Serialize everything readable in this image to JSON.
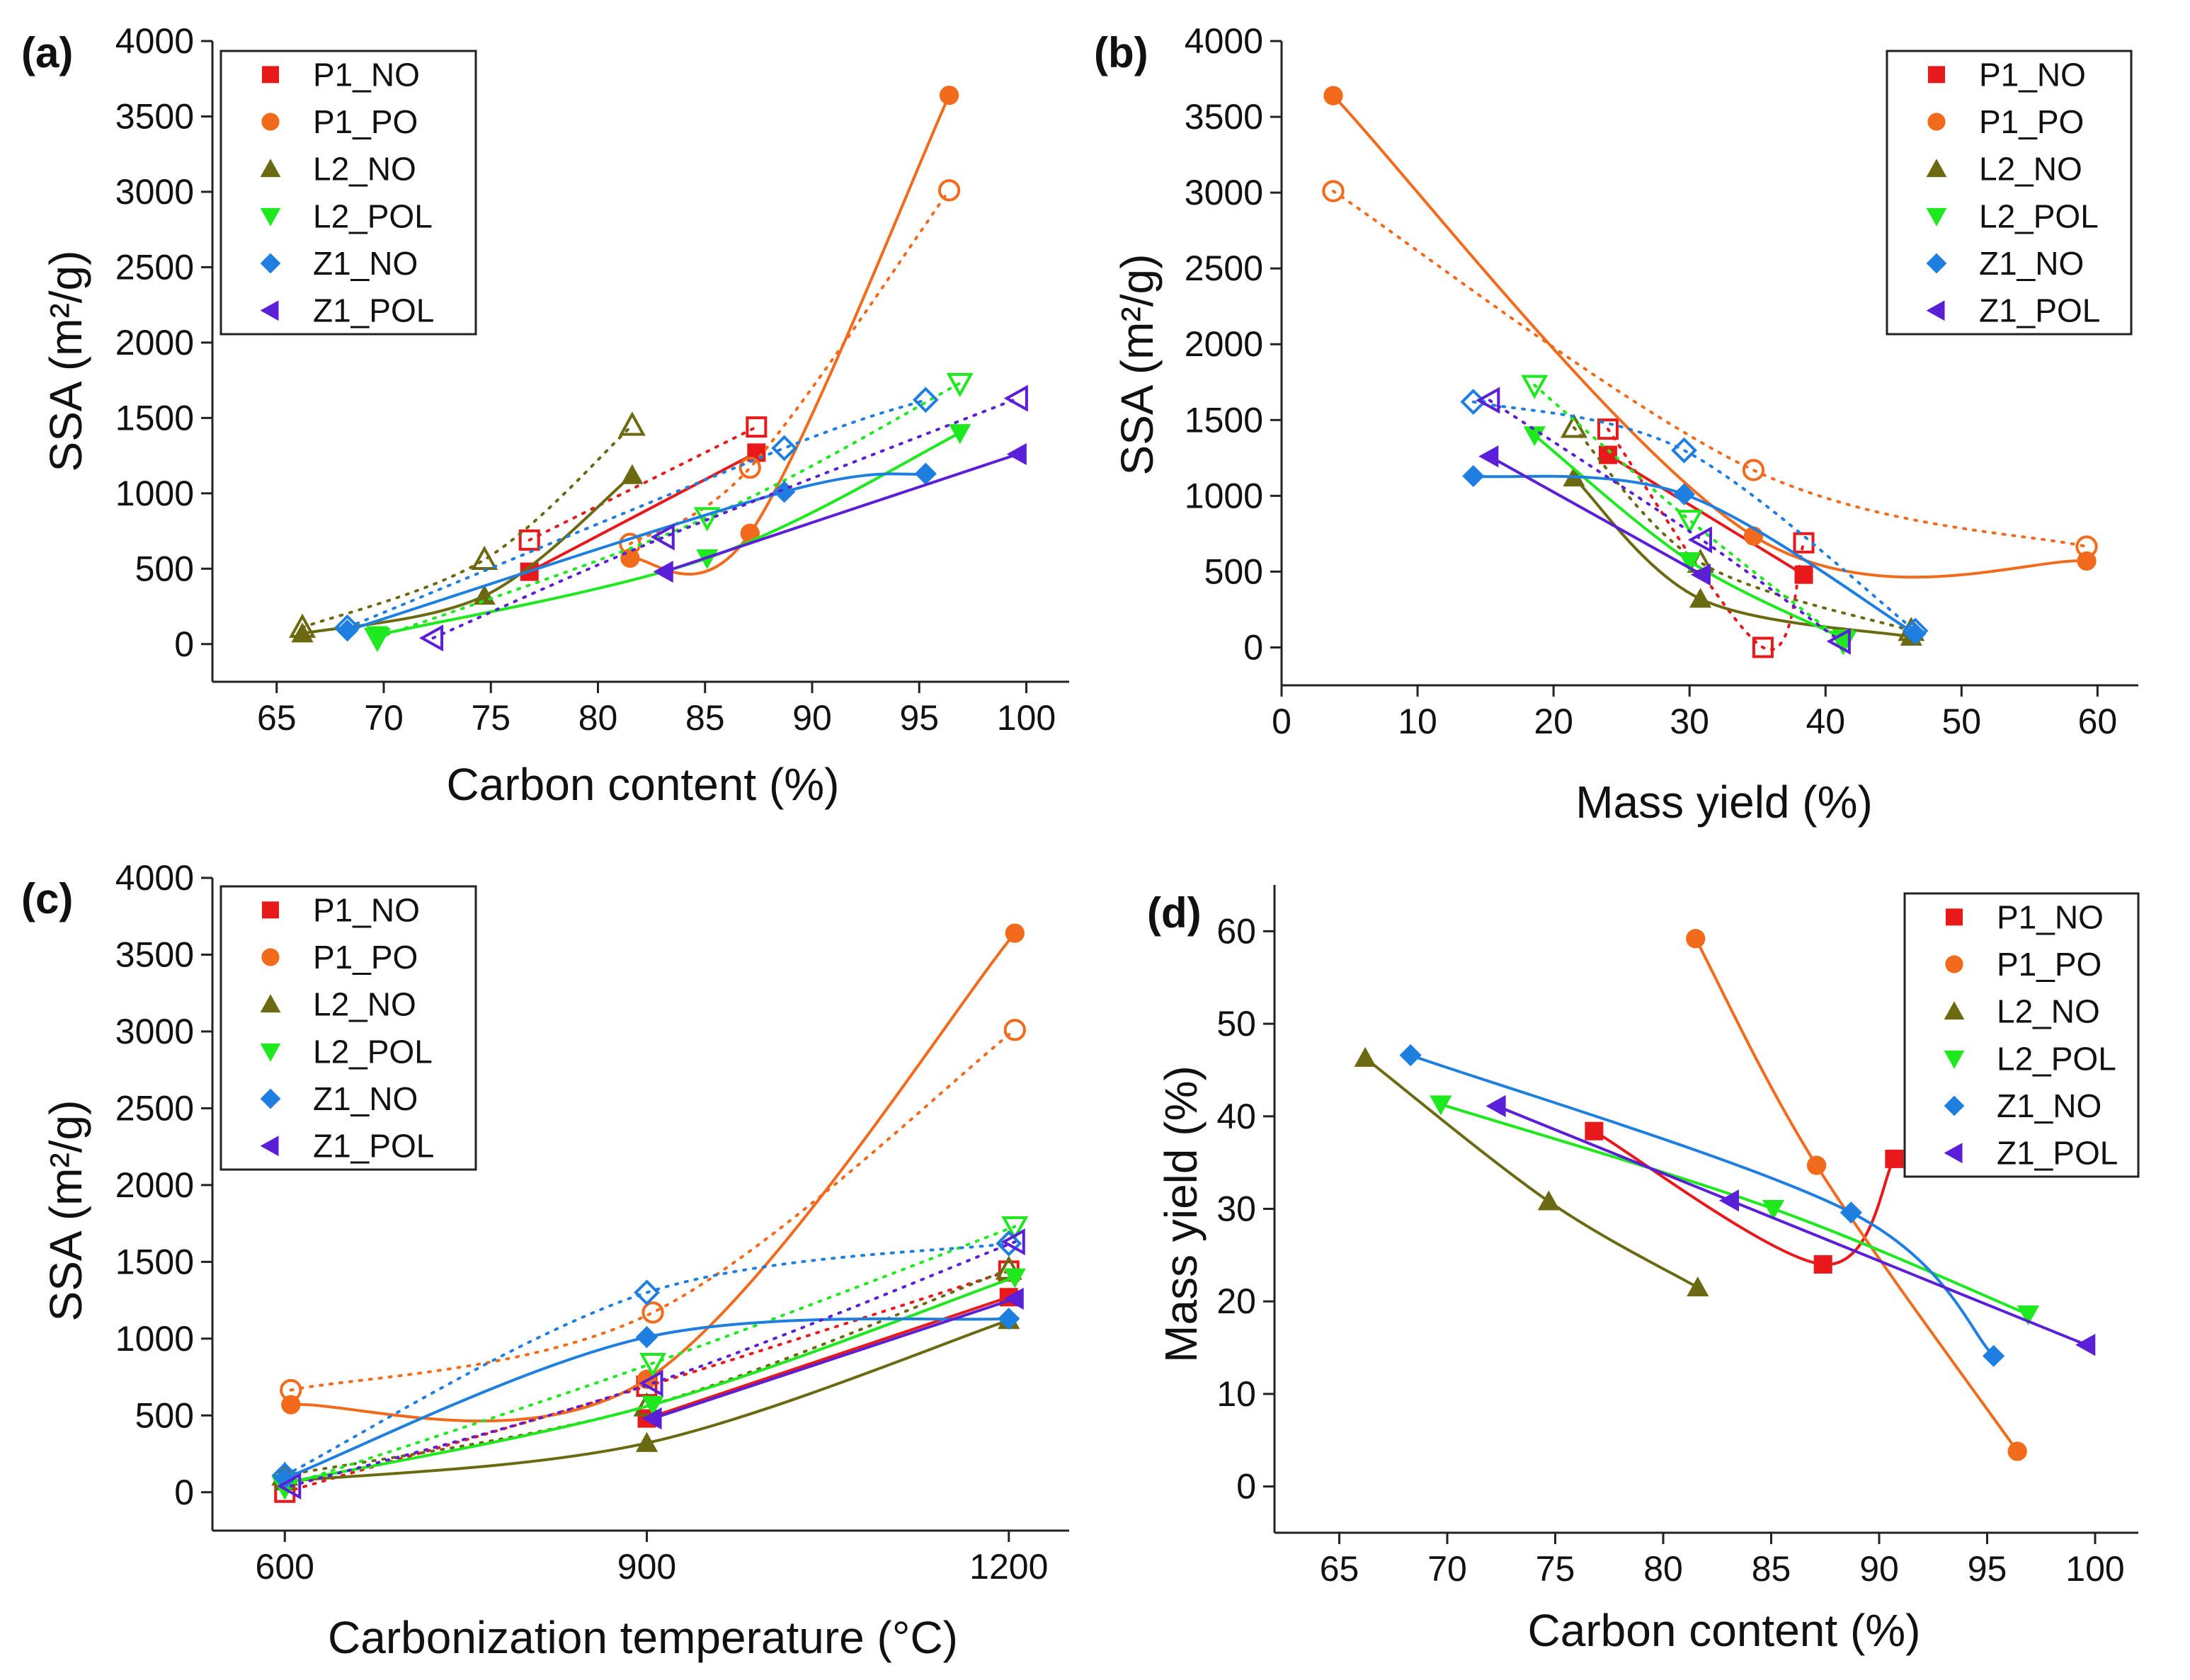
{
  "figure": {
    "colors": {
      "P1_NO": "#e8191b",
      "P1_PO": "#f26b1d",
      "L2_NO": "#6b6a12",
      "L2_POL": "#1ee81e",
      "Z1_NO": "#1f7fe0",
      "Z1_POL": "#5a1fd6"
    }
  },
  "chart_data": [
    {
      "panel": "(a)",
      "type": "scatter",
      "xlabel": "Carbon content (%)",
      "ylabel": "SSA (m²/g)",
      "xlim": [
        62,
        102
      ],
      "ylim": [
        -250,
        4000
      ],
      "xticks": [
        65,
        70,
        75,
        80,
        85,
        90,
        95,
        100
      ],
      "yticks": [
        0,
        500,
        1000,
        1500,
        2000,
        2500,
        3000,
        3500,
        4000
      ],
      "legend": [
        "P1_NO",
        "P1_PO",
        "L2_NO",
        "L2_POL",
        "Z1_NO",
        "Z1_POL"
      ],
      "legend_position": "top-left",
      "series": [
        {
          "name": "P1_NO",
          "marker": "square",
          "filled": [
            [
              76.8,
              480
            ],
            [
              87.4,
              1270
            ]
          ],
          "open": [
            [
              76.8,
              690
            ],
            [
              87.4,
              1440
            ]
          ]
        },
        {
          "name": "P1_PO",
          "marker": "circle",
          "filled": [
            [
              81.5,
              570
            ],
            [
              87.1,
              735
            ],
            [
              96.4,
              3640
            ]
          ],
          "open": [
            [
              81.5,
              665
            ],
            [
              87.1,
              1170
            ],
            [
              96.4,
              3010
            ]
          ]
        },
        {
          "name": "L2_NO",
          "marker": "triangle-up",
          "filled": [
            [
              66.2,
              70
            ],
            [
              74.7,
              320
            ],
            [
              81.6,
              1120
            ]
          ],
          "open": [
            [
              66.2,
              110
            ],
            [
              74.7,
              560
            ],
            [
              81.6,
              1450
            ]
          ]
        },
        {
          "name": "L2_POL",
          "marker": "triangle-down",
          "filled": [
            [
              69.7,
              60
            ],
            [
              85.1,
              570
            ],
            [
              96.9,
              1400
            ]
          ],
          "open": [
            [
              69.7,
              40
            ],
            [
              85.1,
              840
            ],
            [
              96.9,
              1730
            ]
          ]
        },
        {
          "name": "Z1_NO",
          "marker": "diamond",
          "filled": [
            [
              68.3,
              90
            ],
            [
              88.7,
              1010
            ],
            [
              95.3,
              1130
            ]
          ],
          "open": [
            [
              68.3,
              110
            ],
            [
              88.7,
              1300
            ],
            [
              95.3,
              1620
            ]
          ]
        },
        {
          "name": "Z1_POL",
          "marker": "triangle-left",
          "filled": [
            [
              83.1,
              480
            ],
            [
              99.6,
              1260
            ]
          ],
          "open": [
            [
              72.3,
              40
            ],
            [
              83.1,
              710
            ],
            [
              99.6,
              1630
            ]
          ]
        }
      ]
    },
    {
      "panel": "(b)",
      "type": "scatter",
      "xlabel": "Mass yield (%)",
      "ylabel": "SSA (m²/g)",
      "xlim": [
        0,
        63
      ],
      "ylim": [
        -250,
        4000
      ],
      "xticks": [
        0,
        10,
        20,
        30,
        40,
        50,
        60
      ],
      "yticks": [
        0,
        500,
        1000,
        1500,
        2000,
        2500,
        3000,
        3500,
        4000
      ],
      "legend": [
        "P1_NO",
        "P1_PO",
        "L2_NO",
        "L2_POL",
        "Z1_NO",
        "Z1_POL"
      ],
      "legend_position": "top-right",
      "series": [
        {
          "name": "P1_NO",
          "marker": "square",
          "filled": [
            [
              24.0,
              1270
            ],
            [
              38.4,
              480
            ]
          ],
          "open": [
            [
              24.0,
              1440
            ],
            [
              38.4,
              690
            ],
            [
              35.4,
              0
            ]
          ]
        },
        {
          "name": "P1_PO",
          "marker": "circle",
          "filled": [
            [
              3.8,
              3640
            ],
            [
              34.7,
              735
            ],
            [
              59.2,
              570
            ]
          ],
          "open": [
            [
              3.8,
              3010
            ],
            [
              34.7,
              1170
            ],
            [
              59.2,
              665
            ]
          ]
        },
        {
          "name": "L2_NO",
          "marker": "triangle-up",
          "filled": [
            [
              21.5,
              1120
            ],
            [
              30.8,
              320
            ],
            [
              46.3,
              70
            ]
          ],
          "open": [
            [
              21.5,
              1450
            ],
            [
              30.8,
              560
            ],
            [
              46.3,
              110
            ]
          ]
        },
        {
          "name": "L2_POL",
          "marker": "triangle-down",
          "filled": [
            [
              18.6,
              1400
            ],
            [
              30.0,
              570
            ],
            [
              41.3,
              60
            ]
          ],
          "open": [
            [
              18.6,
              1730
            ],
            [
              30.0,
              840
            ],
            [
              41.3,
              40
            ]
          ]
        },
        {
          "name": "Z1_NO",
          "marker": "diamond",
          "filled": [
            [
              14.1,
              1130
            ],
            [
              29.6,
              1010
            ],
            [
              46.6,
              90
            ]
          ],
          "open": [
            [
              14.1,
              1620
            ],
            [
              29.6,
              1300
            ],
            [
              46.6,
              110
            ]
          ]
        },
        {
          "name": "Z1_POL",
          "marker": "triangle-left",
          "filled": [
            [
              15.3,
              1260
            ],
            [
              30.9,
              480
            ]
          ],
          "open": [
            [
              15.3,
              1630
            ],
            [
              30.9,
              710
            ],
            [
              41.1,
              40
            ]
          ]
        }
      ]
    },
    {
      "panel": "(c)",
      "type": "scatter",
      "xlabel": "Carbonization temperature (°C)",
      "ylabel": "SSA (m²/g)",
      "xlim": [
        540,
        1250
      ],
      "ylim": [
        -250,
        4000
      ],
      "xticks": [
        600,
        900,
        1200
      ],
      "yticks": [
        0,
        500,
        1000,
        1500,
        2000,
        2500,
        3000,
        3500,
        4000
      ],
      "legend": [
        "P1_NO",
        "P1_PO",
        "L2_NO",
        "L2_POL",
        "Z1_NO",
        "Z1_POL"
      ],
      "legend_position": "top-left",
      "series": [
        {
          "name": "P1_NO",
          "marker": "square",
          "filled": [
            [
              900,
              480
            ],
            [
              1200,
              1270
            ]
          ],
          "open": [
            [
              600,
              0
            ],
            [
              900,
              690
            ],
            [
              1200,
              1440
            ]
          ]
        },
        {
          "name": "P1_PO",
          "marker": "circle",
          "filled": [
            [
              605,
              570
            ],
            [
              900,
              735
            ],
            [
              1205,
              3640
            ]
          ],
          "open": [
            [
              605,
              665
            ],
            [
              905,
              1170
            ],
            [
              1205,
              3010
            ]
          ]
        },
        {
          "name": "L2_NO",
          "marker": "triangle-up",
          "filled": [
            [
              600,
              70
            ],
            [
              900,
              320
            ],
            [
              1200,
              1120
            ]
          ],
          "open": [
            [
              600,
              110
            ],
            [
              900,
              560
            ],
            [
              1200,
              1450
            ]
          ]
        },
        {
          "name": "L2_POL",
          "marker": "triangle-down",
          "filled": [
            [
              600,
              60
            ],
            [
              905,
              570
            ],
            [
              1205,
              1400
            ]
          ],
          "open": [
            [
              600,
              40
            ],
            [
              905,
              840
            ],
            [
              1205,
              1730
            ]
          ]
        },
        {
          "name": "Z1_NO",
          "marker": "diamond",
          "filled": [
            [
              600,
              90
            ],
            [
              900,
              1010
            ],
            [
              1200,
              1130
            ]
          ],
          "open": [
            [
              600,
              110
            ],
            [
              900,
              1300
            ],
            [
              1200,
              1620
            ]
          ]
        },
        {
          "name": "Z1_POL",
          "marker": "triangle-left",
          "filled": [
            [
              905,
              480
            ],
            [
              1205,
              1260
            ]
          ],
          "open": [
            [
              605,
              40
            ],
            [
              905,
              710
            ],
            [
              1205,
              1630
            ]
          ]
        }
      ]
    },
    {
      "panel": "(d)",
      "type": "scatter",
      "xlabel": "Carbon content (%)",
      "ylabel": "Mass yield (%)",
      "xlim": [
        62,
        102
      ],
      "ylim": [
        -5,
        65
      ],
      "xticks": [
        65,
        70,
        75,
        80,
        85,
        90,
        95,
        100
      ],
      "yticks": [
        0,
        10,
        20,
        30,
        40,
        50,
        60
      ],
      "legend": [
        "P1_NO",
        "P1_PO",
        "L2_NO",
        "L2_POL",
        "Z1_NO",
        "Z1_POL"
      ],
      "legend_position": "top-right",
      "series": [
        {
          "name": "P1_NO",
          "marker": "square",
          "filled": [
            [
              76.8,
              38.4
            ],
            [
              90.7,
              35.4
            ],
            [
              87.4,
              24.0
            ]
          ],
          "open": []
        },
        {
          "name": "P1_PO",
          "marker": "circle",
          "filled": [
            [
              81.5,
              59.2
            ],
            [
              87.1,
              34.7
            ],
            [
              96.4,
              3.8
            ]
          ],
          "open": []
        },
        {
          "name": "L2_NO",
          "marker": "triangle-up",
          "filled": [
            [
              66.2,
              46.3
            ],
            [
              74.7,
              30.8
            ],
            [
              81.6,
              21.5
            ]
          ],
          "open": []
        },
        {
          "name": "L2_POL",
          "marker": "triangle-down",
          "filled": [
            [
              69.7,
              41.3
            ],
            [
              85.1,
              30.0
            ],
            [
              96.9,
              18.6
            ]
          ],
          "open": []
        },
        {
          "name": "Z1_NO",
          "marker": "diamond",
          "filled": [
            [
              68.3,
              46.6
            ],
            [
              88.7,
              29.6
            ],
            [
              95.3,
              14.1
            ]
          ],
          "open": []
        },
        {
          "name": "Z1_POL",
          "marker": "triangle-left",
          "filled": [
            [
              72.3,
              41.1
            ],
            [
              83.1,
              30.9
            ],
            [
              99.6,
              15.3
            ]
          ],
          "open": []
        }
      ]
    }
  ]
}
